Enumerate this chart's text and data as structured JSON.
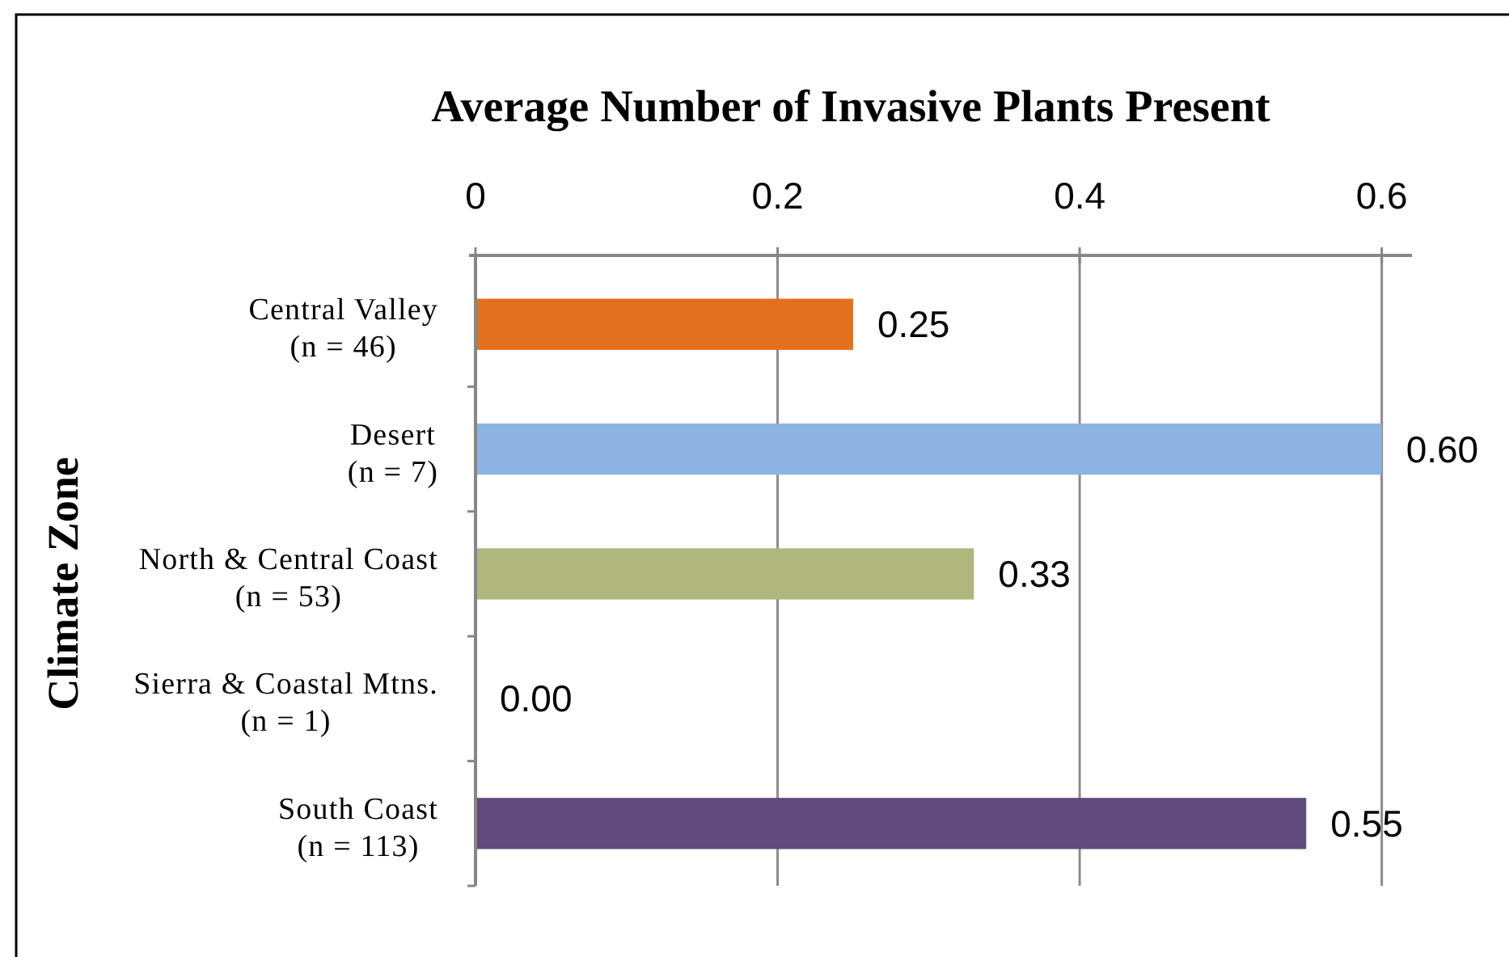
{
  "chart_data": {
    "type": "bar",
    "orientation": "horizontal",
    "title": "Average Number of Invasive Plants Present",
    "ylabel": "Climate Zone",
    "categories": [
      "Central Valley\n(n = 46)",
      "Desert\n(n = 7)",
      "North & Central Coast\n(n = 53)",
      "Sierra & Coastal Mtns.\n(n = 1)",
      "South Coast\n(n = 113)"
    ],
    "values": [
      0.25,
      0.6,
      0.33,
      0,
      0.55
    ],
    "colors": [
      "#e3701e",
      "#8db3e2",
      "#b0b77c",
      null,
      "#604a7b"
    ],
    "value_labels": [
      "0.25",
      "0.60",
      "0.33",
      "0.00",
      "0.55"
    ],
    "xlim": [
      0,
      0.62
    ],
    "xticks": [
      0,
      0.2,
      0.4,
      0.6
    ],
    "grid": "x"
  }
}
